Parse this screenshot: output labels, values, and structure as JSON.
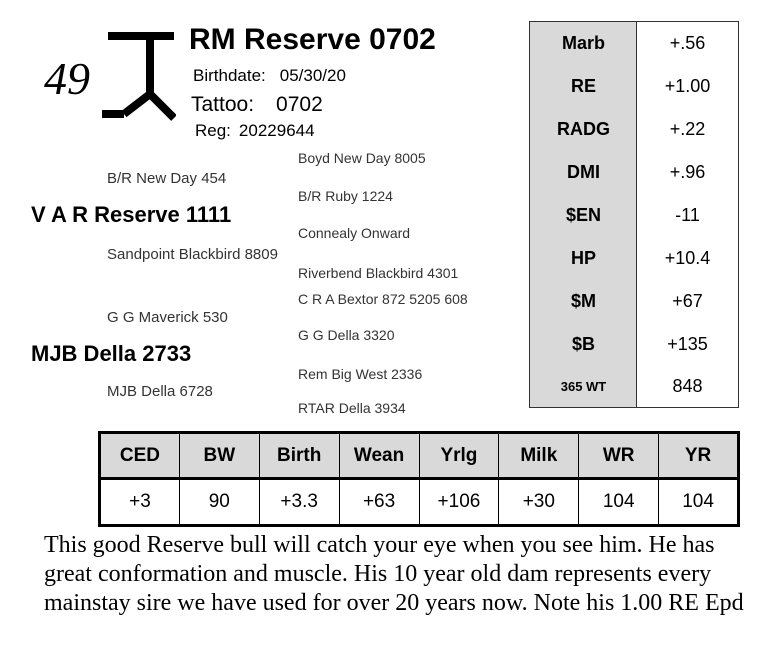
{
  "lot_number": "49",
  "header": {
    "name": "RM Reserve 0702",
    "birthdate_label": "Birthdate:",
    "birthdate": "05/30/20",
    "tattoo_label": "Tattoo:",
    "tattoo": "0702",
    "reg_label": "Reg:",
    "reg": "20229644"
  },
  "pedigree": {
    "sire": "V A R Reserve 1111",
    "sire_sire": "B/R New Day 454",
    "sire_sire_sire": "Boyd New Day 8005",
    "sire_sire_dam": "B/R Ruby 1224",
    "sire_dam": "Sandpoint Blackbird 8809",
    "sire_dam_sire": "Connealy Onward",
    "sire_dam_dam": "Riverbend Blackbird 4301",
    "dam": "MJB Della 2733",
    "dam_sire": "G G Maverick 530",
    "dam_sire_sire": "C R A Bextor 872 5205 608",
    "dam_sire_dam": "G G Della 3320",
    "dam_dam": "MJB Della 6728",
    "dam_dam_sire": "Rem Big West 2336",
    "dam_dam_dam": "RTAR Della 3934"
  },
  "side_epds": [
    {
      "label": "Marb",
      "value": "+.56"
    },
    {
      "label": "RE",
      "value": "+1.00"
    },
    {
      "label": "RADG",
      "value": "+.22"
    },
    {
      "label": "DMI",
      "value": "+.96"
    },
    {
      "label": "$EN",
      "value": "-11"
    },
    {
      "label": "HP",
      "value": "+10.4"
    },
    {
      "label": "$M",
      "value": "+67"
    },
    {
      "label": "$B",
      "value": "+135"
    },
    {
      "label": "365 WT",
      "value": "848"
    }
  ],
  "epd_table": {
    "headers": [
      "CED",
      "BW",
      "Birth",
      "Wean",
      "Yrlg",
      "Milk",
      "WR",
      "YR"
    ],
    "values": [
      "+3",
      "90",
      "+3.3",
      "+63",
      "+106",
      "+30",
      "104",
      "104"
    ]
  },
  "description": "This good Reserve bull will catch your eye when you see him.  He has great conformation and muscle.  His 10 year old dam represents every mainstay sire we have used for over 20 years now. Note his 1.00 RE Epd"
}
